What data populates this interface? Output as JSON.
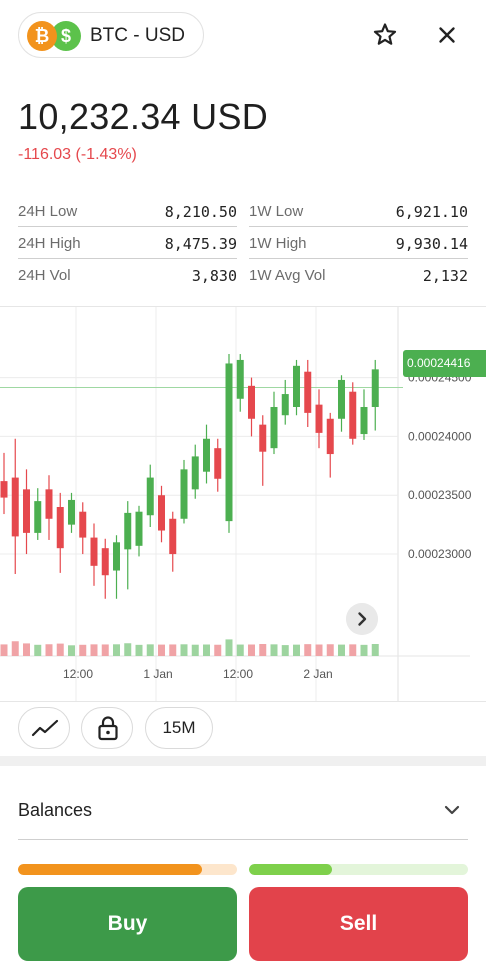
{
  "header": {
    "base_coin_icon": "bitcoin-icon",
    "quote_coin_icon": "dollar-icon",
    "base_symbol": "₿",
    "quote_symbol": "$",
    "pair_label": "BTC - USD",
    "favorite_icon": "star-icon",
    "close_icon": "close-icon"
  },
  "price": {
    "value": "10,232.34 USD",
    "change": "-116.03 (-1.43%)"
  },
  "stats": [
    [
      {
        "label": "24H Low",
        "value": "8,210.50"
      },
      {
        "label": "1W Low",
        "value": "6,921.10"
      }
    ],
    [
      {
        "label": "24H High",
        "value": "8,475.39"
      },
      {
        "label": "1W High",
        "value": "9,930.14"
      }
    ],
    [
      {
        "label": "24H Vol",
        "value": "3,830"
      },
      {
        "label": "1W Avg Vol",
        "value": "2,132"
      }
    ]
  ],
  "chart_data": {
    "type": "candlestick",
    "current_price_label": "0.00024416",
    "current_price": 0.00024416,
    "y_ticks": [
      {
        "label": "0.00024500",
        "value": 0.000245
      },
      {
        "label": "0.00024000",
        "value": 0.00024
      },
      {
        "label": "0.00023500",
        "value": 0.000235
      },
      {
        "label": "0.00023000",
        "value": 0.00023
      }
    ],
    "x_ticks": [
      "12:00",
      "1 Jan",
      "12:00",
      "2 Jan"
    ],
    "ylim": [
      0.0002255,
      0.000251
    ],
    "grid": true,
    "colors": {
      "up": "#4caf50",
      "down": "#e5484d"
    },
    "candles": [
      {
        "o": 0.0002362,
        "c": 0.0002348,
        "h": 0.0002386,
        "l": 0.0002334
      },
      {
        "o": 0.0002365,
        "c": 0.0002315,
        "h": 0.0002398,
        "l": 0.0002283
      },
      {
        "o": 0.0002355,
        "c": 0.0002318,
        "h": 0.0002372,
        "l": 0.00023
      },
      {
        "o": 0.0002318,
        "c": 0.0002345,
        "h": 0.0002356,
        "l": 0.0002312
      },
      {
        "o": 0.0002355,
        "c": 0.000233,
        "h": 0.0002367,
        "l": 0.0002312
      },
      {
        "o": 0.000234,
        "c": 0.0002305,
        "h": 0.0002352,
        "l": 0.0002284
      },
      {
        "o": 0.0002325,
        "c": 0.0002346,
        "h": 0.0002352,
        "l": 0.0002318
      },
      {
        "o": 0.0002336,
        "c": 0.0002314,
        "h": 0.0002344,
        "l": 0.00023
      },
      {
        "o": 0.0002314,
        "c": 0.000229,
        "h": 0.0002326,
        "l": 0.0002273
      },
      {
        "o": 0.0002305,
        "c": 0.0002282,
        "h": 0.0002313,
        "l": 0.0002262
      },
      {
        "o": 0.0002286,
        "c": 0.000231,
        "h": 0.0002316,
        "l": 0.0002262
      },
      {
        "o": 0.0002304,
        "c": 0.0002335,
        "h": 0.0002345,
        "l": 0.000227
      },
      {
        "o": 0.0002307,
        "c": 0.0002336,
        "h": 0.0002341,
        "l": 0.0002298
      },
      {
        "o": 0.0002333,
        "c": 0.0002365,
        "h": 0.0002376,
        "l": 0.0002323
      },
      {
        "o": 0.000235,
        "c": 0.000232,
        "h": 0.0002358,
        "l": 0.000231
      },
      {
        "o": 0.000233,
        "c": 0.00023,
        "h": 0.0002336,
        "l": 0.0002285
      },
      {
        "o": 0.000233,
        "c": 0.0002372,
        "h": 0.000238,
        "l": 0.0002326
      },
      {
        "o": 0.0002355,
        "c": 0.0002383,
        "h": 0.0002393,
        "l": 0.0002347
      },
      {
        "o": 0.000237,
        "c": 0.0002398,
        "h": 0.000241,
        "l": 0.000236
      },
      {
        "o": 0.000239,
        "c": 0.0002364,
        "h": 0.0002398,
        "l": 0.0002353
      },
      {
        "o": 0.0002328,
        "c": 0.0002462,
        "h": 0.000247,
        "l": 0.0002318
      },
      {
        "o": 0.0002432,
        "c": 0.0002465,
        "h": 0.000247,
        "l": 0.0002421
      },
      {
        "o": 0.0002443,
        "c": 0.0002415,
        "h": 0.000245,
        "l": 0.00024
      },
      {
        "o": 0.000241,
        "c": 0.0002387,
        "h": 0.0002418,
        "l": 0.0002358
      },
      {
        "o": 0.000239,
        "c": 0.0002425,
        "h": 0.0002438,
        "l": 0.0002385
      },
      {
        "o": 0.0002418,
        "c": 0.0002436,
        "h": 0.0002448,
        "l": 0.000241
      },
      {
        "o": 0.0002425,
        "c": 0.000246,
        "h": 0.0002465,
        "l": 0.0002418
      },
      {
        "o": 0.0002455,
        "c": 0.000242,
        "h": 0.0002465,
        "l": 0.0002408
      },
      {
        "o": 0.0002427,
        "c": 0.0002403,
        "h": 0.000244,
        "l": 0.000239
      },
      {
        "o": 0.0002415,
        "c": 0.0002385,
        "h": 0.000242,
        "l": 0.0002365
      },
      {
        "o": 0.0002415,
        "c": 0.0002448,
        "h": 0.0002452,
        "l": 0.0002404
      },
      {
        "o": 0.0002438,
        "c": 0.0002398,
        "h": 0.0002446,
        "l": 0.0002393
      },
      {
        "o": 0.0002402,
        "c": 0.0002425,
        "h": 0.000244,
        "l": 0.0002397
      },
      {
        "o": 0.0002425,
        "c": 0.0002457,
        "h": 0.0002465,
        "l": 0.0002405
      }
    ]
  },
  "chart_controls": {
    "line_icon": "line-chart-icon",
    "lock_icon": "lock-icon",
    "scroll_icon": "chevron-right-icon",
    "timeframe": "15M"
  },
  "balances": {
    "label": "Balances",
    "chevron_icon": "chevron-down-icon"
  },
  "trade": {
    "buy_label": "Buy",
    "sell_label": "Sell",
    "buy_pressure": 0.84,
    "sell_pressure": 0.38
  }
}
